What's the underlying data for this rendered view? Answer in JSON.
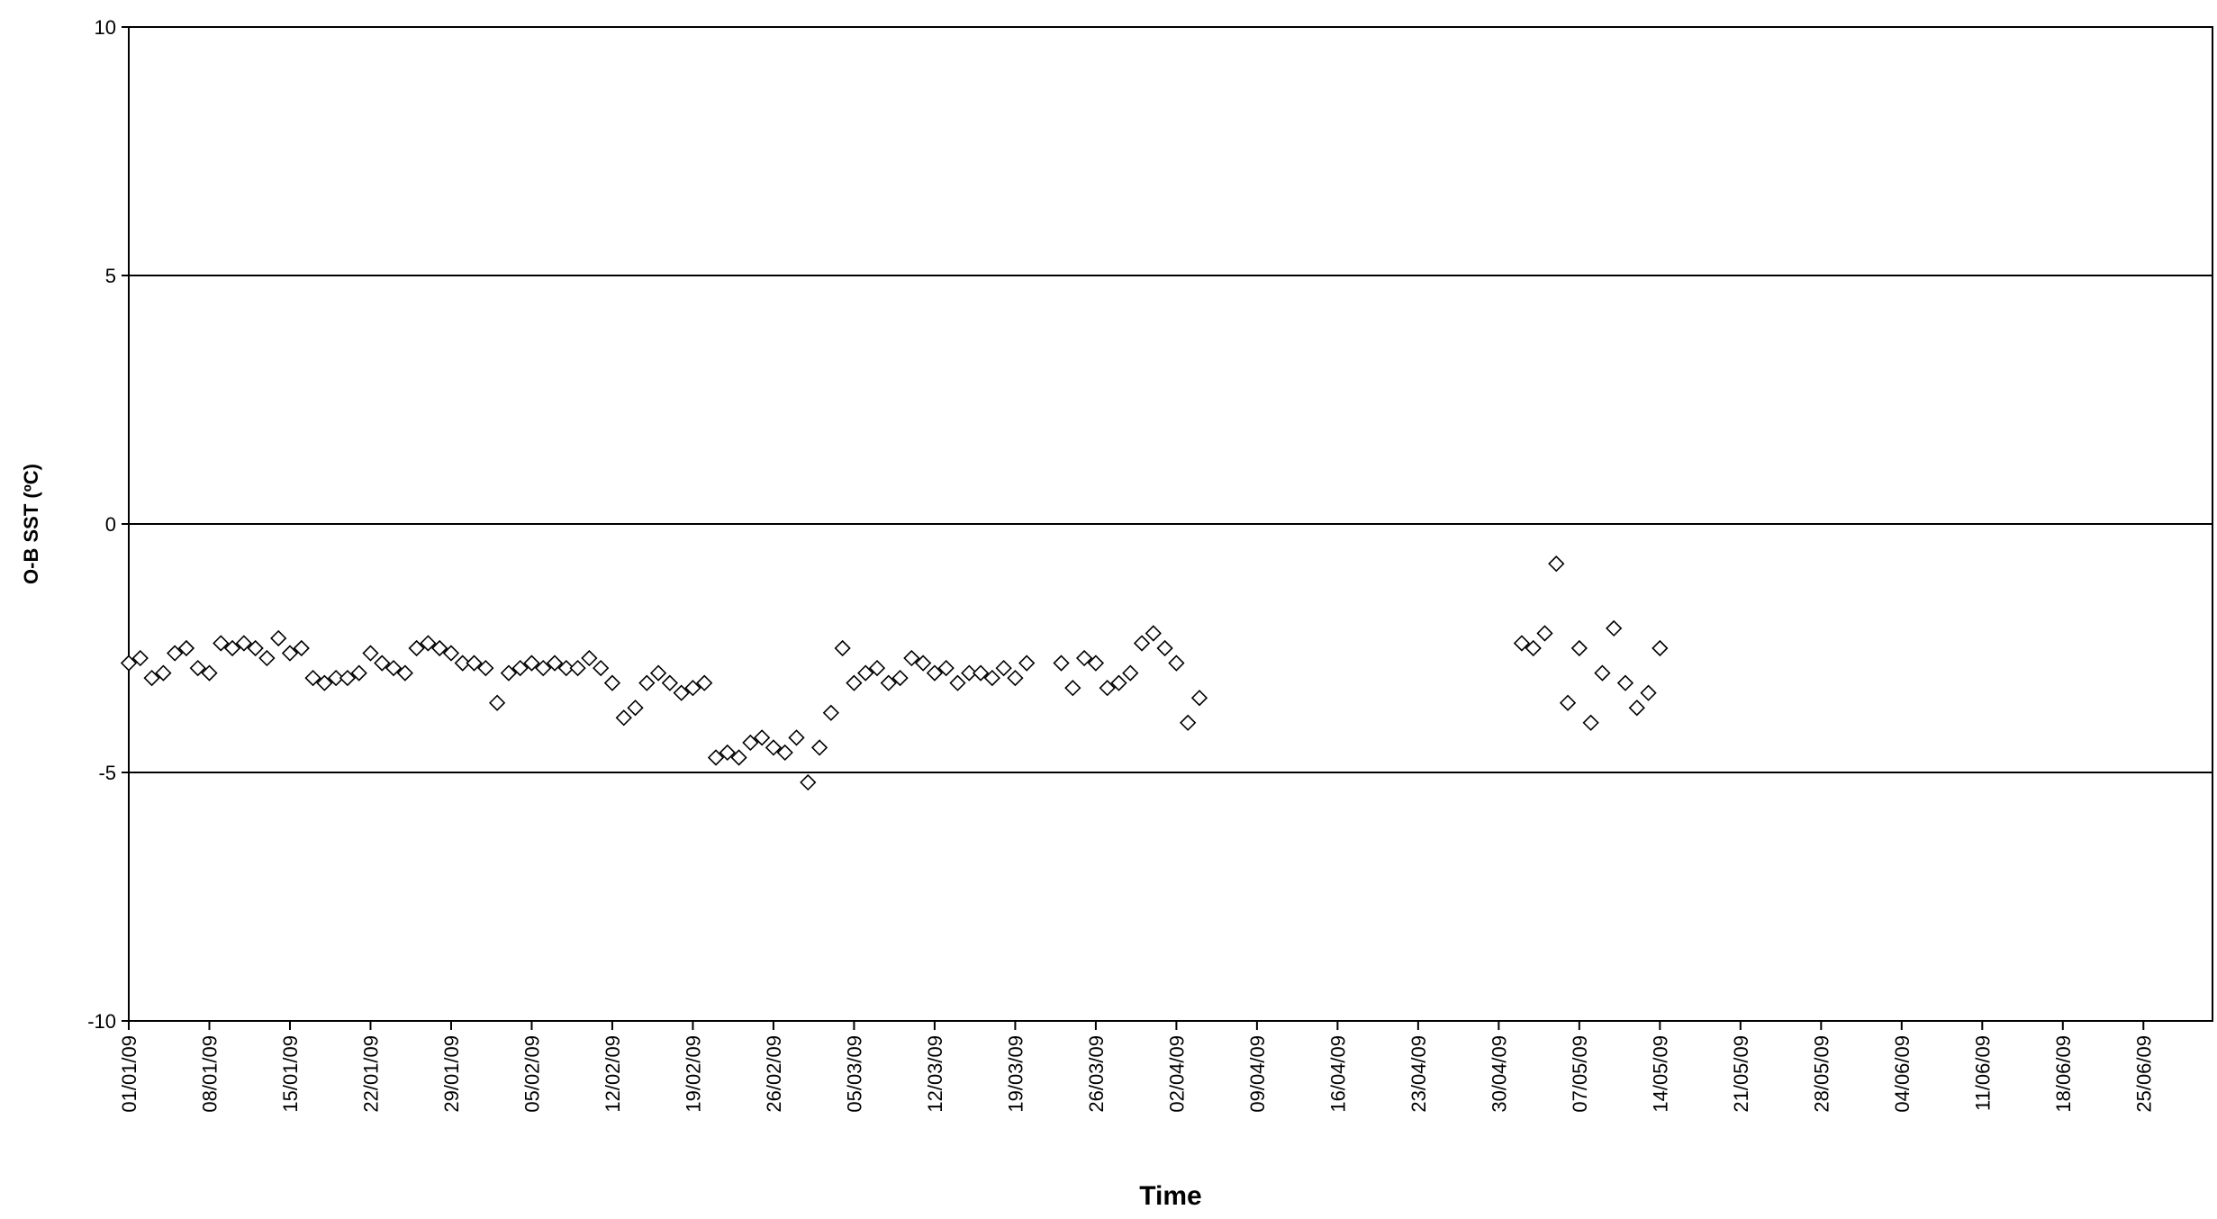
{
  "chart_data": {
    "type": "scatter",
    "x_label": "Time",
    "y_label": "O-B SST (ºC)",
    "color": "#000000",
    "marker": "diamond",
    "grid": true,
    "x": [
      "2009-01-01",
      "2009-01-02",
      "2009-01-03",
      "2009-01-04",
      "2009-01-05",
      "2009-01-06",
      "2009-01-07",
      "2009-01-08",
      "2009-01-09",
      "2009-01-10",
      "2009-01-11",
      "2009-01-12",
      "2009-01-13",
      "2009-01-14",
      "2009-01-15",
      "2009-01-16",
      "2009-01-17",
      "2009-01-18",
      "2009-01-19",
      "2009-01-20",
      "2009-01-21",
      "2009-01-22",
      "2009-01-23",
      "2009-01-24",
      "2009-01-25",
      "2009-01-26",
      "2009-01-27",
      "2009-01-28",
      "2009-01-29",
      "2009-01-30",
      "2009-01-31",
      "2009-02-01",
      "2009-02-02",
      "2009-02-03",
      "2009-02-04",
      "2009-02-05",
      "2009-02-06",
      "2009-02-07",
      "2009-02-08",
      "2009-02-09",
      "2009-02-10",
      "2009-02-11",
      "2009-02-12",
      "2009-02-13",
      "2009-02-14",
      "2009-02-15",
      "2009-02-16",
      "2009-02-17",
      "2009-02-18",
      "2009-02-19",
      "2009-02-20",
      "2009-02-21",
      "2009-02-22",
      "2009-02-23",
      "2009-02-24",
      "2009-02-25",
      "2009-02-26",
      "2009-02-27",
      "2009-02-28",
      "2009-03-01",
      "2009-03-02",
      "2009-03-03",
      "2009-03-04",
      "2009-03-05",
      "2009-03-06",
      "2009-03-07",
      "2009-03-08",
      "2009-03-09",
      "2009-03-10",
      "2009-03-11",
      "2009-03-12",
      "2009-03-13",
      "2009-03-14",
      "2009-03-15",
      "2009-03-16",
      "2009-03-17",
      "2009-03-18",
      "2009-03-19",
      "2009-03-20",
      "2009-03-23",
      "2009-03-24",
      "2009-03-25",
      "2009-03-26",
      "2009-03-27",
      "2009-03-28",
      "2009-03-29",
      "2009-03-30",
      "2009-03-31",
      "2009-04-01",
      "2009-04-02",
      "2009-04-03",
      "2009-04-04",
      "2009-05-02",
      "2009-05-03",
      "2009-05-04",
      "2009-05-05",
      "2009-05-06",
      "2009-05-07",
      "2009-05-08",
      "2009-05-09",
      "2009-05-10",
      "2009-05-11",
      "2009-05-12",
      "2009-05-13",
      "2009-05-14"
    ],
    "values": [
      -2.8,
      -2.7,
      -3.1,
      -3.0,
      -2.6,
      -2.5,
      -2.9,
      -3.0,
      -2.4,
      -2.5,
      -2.4,
      -2.5,
      -2.7,
      -2.3,
      -2.6,
      -2.5,
      -3.1,
      -3.2,
      -3.1,
      -3.1,
      -3.0,
      -2.6,
      -2.8,
      -2.9,
      -3.0,
      -2.5,
      -2.4,
      -2.5,
      -2.6,
      -2.8,
      -2.8,
      -2.9,
      -3.6,
      -3.0,
      -2.9,
      -2.8,
      -2.9,
      -2.8,
      -2.9,
      -2.9,
      -2.7,
      -2.9,
      -3.2,
      -3.9,
      -3.7,
      -3.2,
      -3.0,
      -3.2,
      -3.4,
      -3.3,
      -3.2,
      -4.7,
      -4.6,
      -4.7,
      -4.4,
      -4.3,
      -4.5,
      -4.6,
      -4.3,
      -5.2,
      -4.5,
      -3.8,
      -2.5,
      -3.2,
      -3.0,
      -2.9,
      -3.2,
      -3.1,
      -2.7,
      -2.8,
      -3.0,
      -2.9,
      -3.2,
      -3.0,
      -3.0,
      -3.1,
      -2.9,
      -3.1,
      -2.8,
      -2.8,
      -3.3,
      -2.7,
      -2.8,
      -3.3,
      -3.2,
      -3.0,
      -2.4,
      -2.2,
      -2.5,
      -2.8,
      -4.0,
      -3.5,
      -2.4,
      -2.5,
      -2.2,
      -0.8,
      -3.6,
      -2.5,
      -4.0,
      -3.0,
      -2.1,
      -3.2,
      -3.7,
      -3.4,
      -2.5
    ],
    "xlim": [
      "2009-01-01",
      "2009-07-01"
    ],
    "xticks": [
      {
        "value": "2009-01-01",
        "label": "01/01/09"
      },
      {
        "value": "2009-01-08",
        "label": "08/01/09"
      },
      {
        "value": "2009-01-15",
        "label": "15/01/09"
      },
      {
        "value": "2009-01-22",
        "label": "22/01/09"
      },
      {
        "value": "2009-01-29",
        "label": "29/01/09"
      },
      {
        "value": "2009-02-05",
        "label": "05/02/09"
      },
      {
        "value": "2009-02-12",
        "label": "12/02/09"
      },
      {
        "value": "2009-02-19",
        "label": "19/02/09"
      },
      {
        "value": "2009-02-26",
        "label": "26/02/09"
      },
      {
        "value": "2009-03-05",
        "label": "05/03/09"
      },
      {
        "value": "2009-03-12",
        "label": "12/03/09"
      },
      {
        "value": "2009-03-19",
        "label": "19/03/09"
      },
      {
        "value": "2009-03-26",
        "label": "26/03/09"
      },
      {
        "value": "2009-04-02",
        "label": "02/04/09"
      },
      {
        "value": "2009-04-09",
        "label": "09/04/09"
      },
      {
        "value": "2009-04-16",
        "label": "16/04/09"
      },
      {
        "value": "2009-04-23",
        "label": "23/04/09"
      },
      {
        "value": "2009-04-30",
        "label": "30/04/09"
      },
      {
        "value": "2009-05-07",
        "label": "07/05/09"
      },
      {
        "value": "2009-05-14",
        "label": "14/05/09"
      },
      {
        "value": "2009-05-21",
        "label": "21/05/09"
      },
      {
        "value": "2009-05-28",
        "label": "28/05/09"
      },
      {
        "value": "2009-06-04",
        "label": "04/06/09"
      },
      {
        "value": "2009-06-11",
        "label": "11/06/09"
      },
      {
        "value": "2009-06-18",
        "label": "18/06/09"
      },
      {
        "value": "2009-06-25",
        "label": "25/06/09"
      }
    ],
    "ylim": [
      -10,
      10
    ],
    "yticks": [
      -10,
      -5,
      0,
      5,
      10
    ]
  }
}
